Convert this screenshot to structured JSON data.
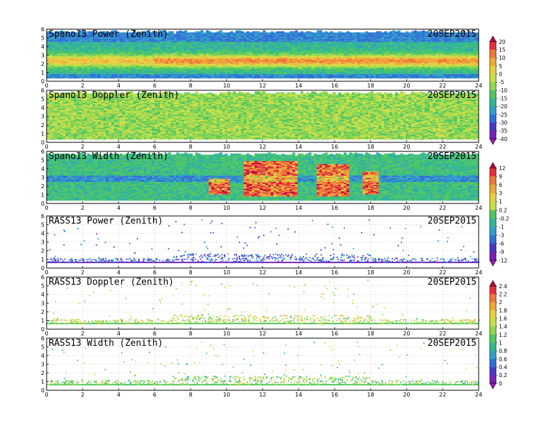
{
  "chart_data": [
    {
      "type": "heatmap",
      "title": "Spano13 Power (Zenith)",
      "date": "20SEP2015",
      "xlim": [
        0,
        24
      ],
      "ylim": [
        0,
        6
      ],
      "x_ticks": [
        "0",
        "2",
        "4",
        "6",
        "8",
        "10",
        "12",
        "14",
        "16",
        "18",
        "20",
        "22",
        "24"
      ],
      "y_ticks": [
        "0",
        "1",
        "2",
        "3",
        "4",
        "5",
        "6"
      ],
      "field": "power",
      "colorbar": "power"
    },
    {
      "type": "heatmap",
      "title": "Spano13 Doppler (Zenith)",
      "date": "20SEP2015",
      "xlim": [
        0,
        24
      ],
      "ylim": [
        0,
        6
      ],
      "x_ticks": [
        "0",
        "2",
        "4",
        "6",
        "8",
        "10",
        "12",
        "14",
        "16",
        "18",
        "20",
        "22",
        "24"
      ],
      "y_ticks": [
        "0",
        "1",
        "2",
        "3",
        "4",
        "5",
        "6"
      ],
      "field": "doppler",
      "colorbar": "power"
    },
    {
      "type": "heatmap",
      "title": "Spano13 Width (Zenith)",
      "date": "20SEP2015",
      "xlim": [
        0,
        24
      ],
      "ylim": [
        0,
        6
      ],
      "x_ticks": [
        "0",
        "2",
        "4",
        "6",
        "8",
        "10",
        "12",
        "14",
        "16",
        "18",
        "20",
        "22",
        "24"
      ],
      "y_ticks": [
        "0",
        "1",
        "2",
        "3",
        "4",
        "5",
        "6"
      ],
      "field": "width",
      "colorbar": "width"
    },
    {
      "type": "scatter",
      "title": "RASS13 Power (Zenith)",
      "date": "20SEP2015",
      "xlim": [
        0,
        24
      ],
      "ylim": [
        0,
        6
      ],
      "x_ticks": [
        "0",
        "2",
        "4",
        "6",
        "8",
        "10",
        "12",
        "14",
        "16",
        "18",
        "20",
        "22",
        "24"
      ],
      "y_ticks": [
        "0",
        "1",
        "2",
        "3",
        "4",
        "5",
        "6"
      ],
      "field": "rass_power",
      "colorbar": "width"
    },
    {
      "type": "scatter",
      "title": "RASS13 Doppler (Zenith)",
      "date": "20SEP2015",
      "xlim": [
        0,
        24
      ],
      "ylim": [
        0,
        6
      ],
      "x_ticks": [
        "0",
        "2",
        "4",
        "6",
        "8",
        "10",
        "12",
        "14",
        "16",
        "18",
        "20",
        "22",
        "24"
      ],
      "y_ticks": [
        "0",
        "1",
        "2",
        "3",
        "4",
        "5",
        "6"
      ],
      "field": "rass_doppler",
      "colorbar": "rass"
    },
    {
      "type": "scatter",
      "title": "RASS13 Width (Zenith)",
      "date": "20SEP2015",
      "xlim": [
        0,
        24
      ],
      "ylim": [
        0,
        6
      ],
      "x_ticks": [
        "0",
        "2",
        "4",
        "6",
        "8",
        "10",
        "12",
        "14",
        "16",
        "18",
        "20",
        "22",
        "24"
      ],
      "y_ticks": [
        "0",
        "1",
        "2",
        "3",
        "4",
        "5",
        "6"
      ],
      "field": "rass_width",
      "colorbar": "rass"
    }
  ],
  "colorbars": {
    "power": {
      "labels": [
        "20",
        "15",
        "10",
        "5",
        "0",
        "-5",
        "-10",
        "-15",
        "-20",
        "-25",
        "-30",
        "-35",
        "-40"
      ],
      "colors": [
        "#c0003c",
        "#e8303c",
        "#f07838",
        "#f0a838",
        "#e8d040",
        "#c8e048",
        "#90d850",
        "#50c860",
        "#30b890",
        "#30a0c8",
        "#3070d8",
        "#4838c8",
        "#7820b8",
        "#a018c0"
      ]
    },
    "width": {
      "labels": [
        "12",
        "9",
        "6",
        "3",
        "1",
        "0.2",
        "-0.2",
        "-1",
        "-3",
        "-6",
        "-9",
        "-12"
      ],
      "colors": [
        "#c0003c",
        "#e8303c",
        "#f07838",
        "#f0a838",
        "#e8d040",
        "#c8e048",
        "#50c860",
        "#30b890",
        "#30a0c8",
        "#3070d8",
        "#4838c8",
        "#7820b8",
        "#a018c0"
      ]
    },
    "rass": {
      "labels": [
        "2.4",
        "2.2",
        "2",
        "1.8",
        "1.6",
        "1.4",
        "1.2",
        "1",
        "0.8",
        "0.6",
        "0.4",
        "0.2",
        "0"
      ],
      "colors": [
        "#c0003c",
        "#e8303c",
        "#f07838",
        "#f0a838",
        "#e8d040",
        "#c8e048",
        "#90d850",
        "#50c860",
        "#30b890",
        "#30a0c8",
        "#3070d8",
        "#4838c8",
        "#7820b8",
        "#a018c0"
      ]
    }
  }
}
